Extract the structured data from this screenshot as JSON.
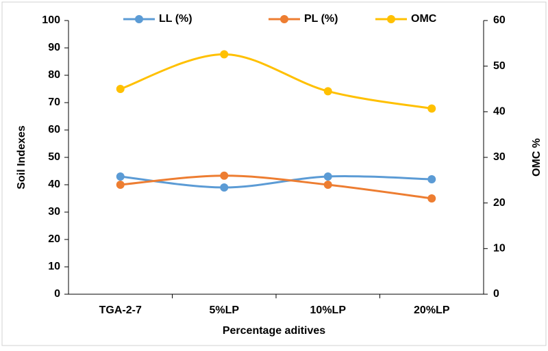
{
  "chart_data": {
    "type": "line",
    "x_label": "Percentage aditives",
    "y_label": "Soil Indexes",
    "y2_label": "OMC %",
    "categories": [
      "TGA-2-7",
      "5%LP",
      "10%LP",
      "20%LP"
    ],
    "series": [
      {
        "name": "LL (%)",
        "color": "#5b9bd5",
        "values": [
          43,
          39,
          43,
          42
        ]
      },
      {
        "name": "PL (%)",
        "color": "#ed7d31",
        "values": [
          40,
          43.3,
          40,
          35
        ]
      },
      {
        "name": "OMC",
        "color": "#ffc000",
        "axis": "y2",
        "values": [
          45,
          52.6,
          44.5,
          40.7
        ]
      }
    ],
    "ylim": [
      0,
      100
    ],
    "yticks": [
      0,
      10,
      20,
      30,
      40,
      50,
      60,
      70,
      80,
      90,
      100
    ],
    "y2lim": [
      0,
      60
    ],
    "y2ticks": [
      0,
      10,
      20,
      30,
      40,
      50,
      60
    ],
    "smooth": true,
    "legend": "top"
  }
}
